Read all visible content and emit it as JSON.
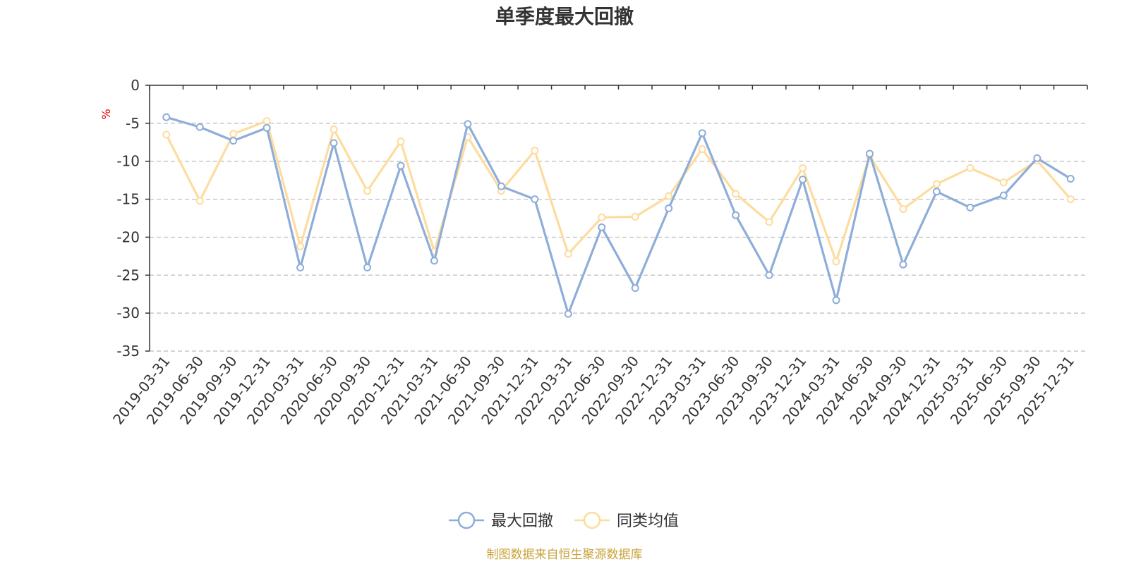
{
  "chart_data": {
    "type": "line",
    "title": "单季度最大回撤",
    "ylabel": "%",
    "ylim": [
      -35,
      0
    ],
    "yticks": [
      0,
      -5,
      -10,
      -15,
      -20,
      -25,
      -30,
      -35
    ],
    "grid": true,
    "legend_position": "bottom-center",
    "categories": [
      "2019-03-31",
      "2019-06-30",
      "2019-09-30",
      "2019-12-31",
      "2020-03-31",
      "2020-06-30",
      "2020-09-30",
      "2020-12-31",
      "2021-03-31",
      "2021-06-30",
      "2021-09-30",
      "2021-12-31",
      "2022-03-31",
      "2022-06-30",
      "2022-09-30",
      "2022-12-31",
      "2023-03-31",
      "2023-06-30",
      "2023-09-30",
      "2023-12-31",
      "2024-03-31",
      "2024-06-30",
      "2024-09-30",
      "2024-12-31",
      "2025-03-31",
      "2025-06-30",
      "2025-09-30",
      "2025-12-31"
    ],
    "series": [
      {
        "name": "最大回撤",
        "color": "#8eadd9",
        "values": [
          -4.2,
          -5.5,
          -7.3,
          -5.6,
          -24.0,
          -7.6,
          -24.0,
          -10.6,
          -23.1,
          -5.1,
          -13.3,
          -15.0,
          -30.1,
          -18.7,
          -26.7,
          -16.2,
          -6.3,
          -17.1,
          -25.0,
          -12.4,
          -28.3,
          -9.0,
          -23.6,
          -14.0,
          -16.1,
          -14.5,
          -9.6,
          -12.3
        ]
      },
      {
        "name": "同类均值",
        "color": "#fddc9e",
        "values": [
          -6.5,
          -15.2,
          -6.4,
          -4.7,
          -21.2,
          -5.8,
          -13.9,
          -7.4,
          -21.9,
          -6.8,
          -13.9,
          -8.6,
          -22.2,
          -17.4,
          -17.3,
          -14.6,
          -8.4,
          -14.3,
          -18.0,
          -10.9,
          -23.2,
          -9.3,
          -16.3,
          -13.0,
          -10.9,
          -12.8,
          -9.9,
          -15.0
        ]
      }
    ],
    "source": "制图数据来自恒生聚源数据库",
    "source_color": "#c9a23a",
    "axis_color": "#333333",
    "grid_color": "#bbbbbb"
  }
}
